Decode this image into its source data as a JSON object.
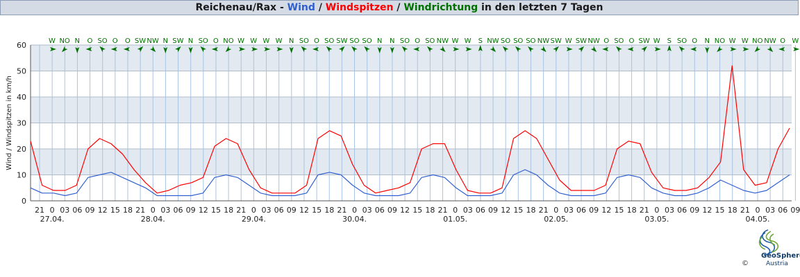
{
  "title": {
    "prefix": "Reichenau/Rax - ",
    "wind": "Wind",
    "sep1": " / ",
    "gusts": "Windspitzen",
    "sep2": " / ",
    "direction": "Windrichtung",
    "suffix": " in den letzten 7 Tagen"
  },
  "colors": {
    "wind": "#3060d0",
    "gusts": "#ff0000",
    "direction": "#007000",
    "band": "#e3e9f1",
    "grid": "#a8c4e4"
  },
  "logo": {
    "name": "GeoSphere",
    "sub": "Austria",
    "copyright": "©"
  },
  "chart_data": {
    "type": "line",
    "ylabel": "Wind / Windspitzen in km/h",
    "ylim": [
      0,
      60
    ],
    "yticks": [
      0,
      10,
      20,
      30,
      40,
      50,
      60
    ],
    "x_start": "26.04. 19:00",
    "x_end": "04.05. 09:30",
    "hour_ticks": [
      "21",
      "0",
      "03",
      "06",
      "09",
      "12",
      "15",
      "18",
      "21",
      "0",
      "03",
      "06",
      "09",
      "12",
      "15",
      "18",
      "21",
      "0",
      "03",
      "06",
      "09",
      "12",
      "15",
      "18",
      "21",
      "0",
      "03",
      "06",
      "09",
      "12",
      "15",
      "18",
      "21",
      "0",
      "03",
      "06",
      "09",
      "12",
      "15",
      "18",
      "21",
      "0",
      "03",
      "06",
      "09",
      "12",
      "15",
      "18",
      "21",
      "0",
      "03",
      "06",
      "09",
      "12",
      "15",
      "18",
      "21",
      "0",
      "03",
      "06",
      "09"
    ],
    "date_labels": [
      "27.04.",
      "28.04.",
      "29.04.",
      "30.04.",
      "01.05.",
      "02.05.",
      "03.05.",
      "04.05."
    ],
    "directions": [
      "W",
      "NO",
      "N",
      "O",
      "SO",
      "O",
      "O",
      "SW",
      "NW",
      "N",
      "SW",
      "N",
      "SO",
      "O",
      "NO",
      "W",
      "W",
      "W",
      "W",
      "N",
      "SO",
      "O",
      "SO",
      "SW",
      "SO",
      "SO",
      "N",
      "N",
      "SO",
      "O",
      "SO",
      "NW",
      "W",
      "W",
      "S",
      "NW",
      "SO",
      "SO",
      "SO",
      "NW",
      "SW",
      "W",
      "SW",
      "NW",
      "O",
      "SO",
      "O",
      "SW",
      "W",
      "S",
      "SO",
      "O",
      "N",
      "NO",
      "W",
      "W",
      "NO",
      "NW",
      "O",
      "W"
    ],
    "series": [
      {
        "name": "Wind",
        "key": "wind",
        "values": [
          5,
          3,
          3,
          2,
          3,
          9,
          10,
          11,
          9,
          7,
          5,
          2,
          2,
          2,
          2,
          3,
          9,
          10,
          9,
          6,
          3,
          2,
          2,
          2,
          3,
          10,
          11,
          10,
          6,
          3,
          2,
          2,
          2,
          3,
          9,
          10,
          9,
          5,
          2,
          2,
          2,
          3,
          10,
          12,
          10,
          6,
          3,
          2,
          2,
          2,
          3,
          9,
          10,
          9,
          5,
          3,
          2,
          2,
          3,
          5,
          8,
          6,
          4,
          3,
          4,
          7,
          10
        ]
      },
      {
        "name": "Windspitzen",
        "key": "gusts",
        "values": [
          23,
          6,
          4,
          4,
          6,
          20,
          24,
          22,
          18,
          12,
          7,
          3,
          4,
          6,
          7,
          9,
          21,
          24,
          22,
          12,
          5,
          3,
          3,
          3,
          6,
          24,
          27,
          25,
          14,
          6,
          3,
          4,
          5,
          7,
          20,
          22,
          22,
          12,
          4,
          3,
          3,
          5,
          24,
          27,
          24,
          16,
          8,
          4,
          4,
          4,
          6,
          20,
          23,
          22,
          11,
          5,
          4,
          4,
          5,
          9,
          15,
          52,
          12,
          6,
          7,
          20,
          28
        ]
      }
    ]
  }
}
